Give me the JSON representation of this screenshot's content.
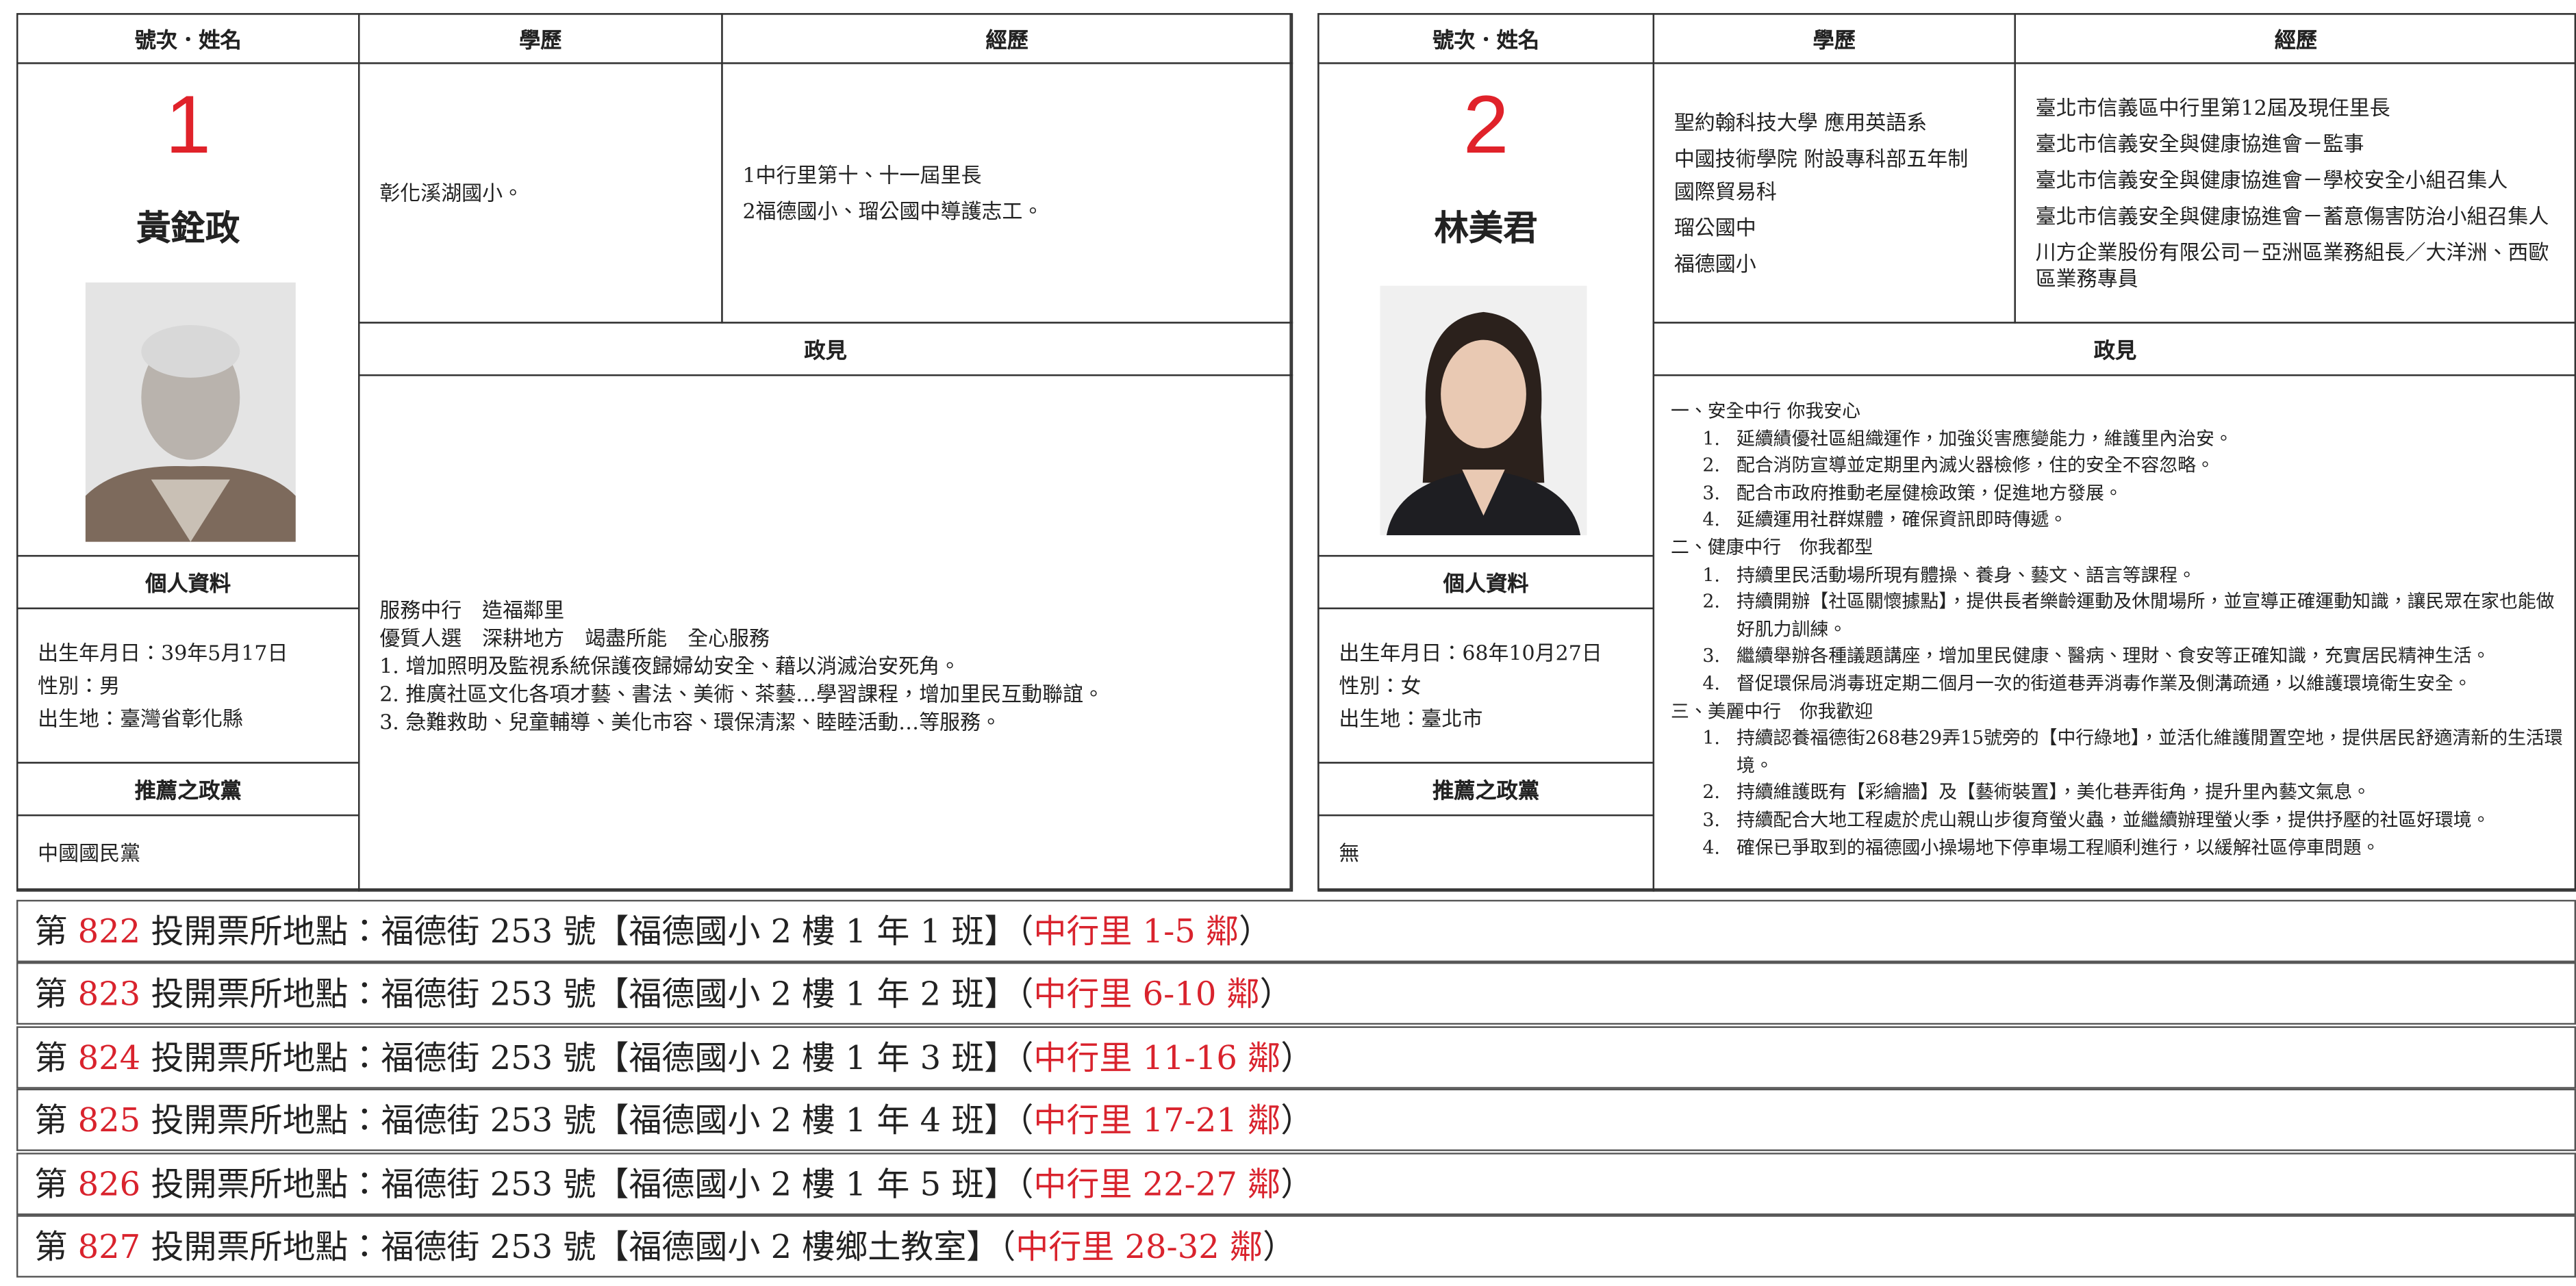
{
  "candidates": [
    {
      "labels": {
        "number_name": "號次．姓名",
        "education": "學歷",
        "experience": "經歷",
        "policy": "政見",
        "personal": "個人資料",
        "party": "推薦之政黨"
      },
      "number": "1",
      "name": "黃銓政",
      "education": [
        "彰化溪湖國小。"
      ],
      "experience": [
        "1中行里第十、十一屆里長",
        "2福德國小、瑠公國中導護志工。"
      ],
      "policy": [
        "服務中行　造福鄰里",
        "優質人選　深耕地方　竭盡所能　全心服務",
        "1. 增加照明及監視系統保護夜歸婦幼安全、藉以消滅治安死角。",
        "2. 推廣社區文化各項才藝、書法、美術、茶藝…學習課程，增加里民互動聯誼。",
        "3. 急難救助、兒童輔導、美化市容、環保清潔、睦睦活動…等服務。"
      ],
      "personal": [
        "出生年月日：39年5月17日",
        "性別：男",
        "出生地：臺灣省彰化縣"
      ],
      "party": "中國國民黨"
    },
    {
      "labels": {
        "number_name": "號次．姓名",
        "education": "學歷",
        "experience": "經歷",
        "policy": "政見",
        "personal": "個人資料",
        "party": "推薦之政黨"
      },
      "number": "2",
      "name": "林美君",
      "education": [
        "聖約翰科技大學 應用英語系",
        "中國技術學院 附設專科部五年制 國際貿易科",
        "瑠公國中",
        "福德國小"
      ],
      "experience": [
        "臺北市信義區中行里第12屆及現任里長",
        "臺北市信義安全與健康協進會－監事",
        "臺北市信義安全與健康協進會－學校安全小組召集人",
        "臺北市信義安全與健康協進會－蓄意傷害防治小組召集人",
        "川方企業股份有限公司－亞洲區業務組長／大洋洲、西歐區業務專員"
      ],
      "policy_sections": [
        {
          "heading": "一、安全中行 你我安心",
          "items": [
            {
              "num": "1.",
              "text": "延續績優社區組織運作，加強災害應變能力，維護里內治安。"
            },
            {
              "num": "2.",
              "text": "配合消防宣導並定期里內滅火器檢修，住的安全不容忽略。"
            },
            {
              "num": "3.",
              "text": "配合市政府推動老屋健檢政策，促進地方發展。"
            },
            {
              "num": "4.",
              "text": "延續運用社群媒體，確保資訊即時傳遞。"
            }
          ]
        },
        {
          "heading": "二、健康中行　你我都型",
          "items": [
            {
              "num": "1.",
              "text": "持續里民活動場所現有體操、養身、藝文、語言等課程。"
            },
            {
              "num": "2.",
              "text": "持續開辦【社區關懷據點】，提供長者樂齡運動及休閒場所，並宣導正確運動知識，讓民眾在家也能做好肌力訓練。"
            },
            {
              "num": "3.",
              "text": "繼續舉辦各種議題講座，增加里民健康、醫病、理財、食安等正確知識，充實居民精神生活。"
            },
            {
              "num": "4.",
              "text": "督促環保局消毒班定期二個月一次的街道巷弄消毒作業及側溝疏通，以維護環境衛生安全。"
            }
          ]
        },
        {
          "heading": "三、美麗中行　你我歡迎",
          "items": [
            {
              "num": "1.",
              "text": "持續認養福德街268巷29弄15號旁的【中行綠地】，並活化維護閒置空地，提供居民舒適清新的生活環境。"
            },
            {
              "num": "2.",
              "text": "持續維護既有【彩繪牆】及【藝術裝置】，美化巷弄街角，提升里內藝文氣息。"
            },
            {
              "num": "3.",
              "text": "持續配合大地工程處於虎山親山步復育螢火蟲，並繼續辦理螢火季，提供抒壓的社區好環境。"
            },
            {
              "num": "4.",
              "text": "確保已爭取到的福德國小操場地下停車場工程順利進行，以緩解社區停車問題。"
            }
          ]
        }
      ],
      "personal": [
        "出生年月日：68年10月27日",
        "性別：女",
        "出生地：臺北市"
      ],
      "party": "無"
    }
  ],
  "polling_places": [
    {
      "prefix": "第 ",
      "number": "822",
      "text": " 投開票所地點：福德街 253 號【福德國小 2 樓 1 年 1 班】（",
      "area": "中行里 1-5 鄰",
      "suffix": "）"
    },
    {
      "prefix": "第 ",
      "number": "823",
      "text": " 投開票所地點：福德街 253 號【福德國小 2 樓 1 年 2 班】（",
      "area": "中行里 6-10 鄰",
      "suffix": "）"
    },
    {
      "prefix": "第 ",
      "number": "824",
      "text": " 投開票所地點：福德街 253 號【福德國小 2 樓 1 年 3 班】（",
      "area": "中行里 11-16 鄰",
      "suffix": "）"
    },
    {
      "prefix": "第 ",
      "number": "825",
      "text": " 投開票所地點：福德街 253 號【福德國小 2 樓 1 年 4 班】（",
      "area": "中行里 17-21 鄰",
      "suffix": "）"
    },
    {
      "prefix": "第 ",
      "number": "826",
      "text": " 投開票所地點：福德街 253 號【福德國小 2 樓 1 年 5 班】（",
      "area": "中行里 22-27 鄰",
      "suffix": "）"
    },
    {
      "prefix": "第 ",
      "number": "827",
      "text": " 投開票所地點：福德街 253 號【福德國小 2 樓鄉土教室】（",
      "area": "中行里 28-32 鄰",
      "suffix": "）"
    }
  ]
}
